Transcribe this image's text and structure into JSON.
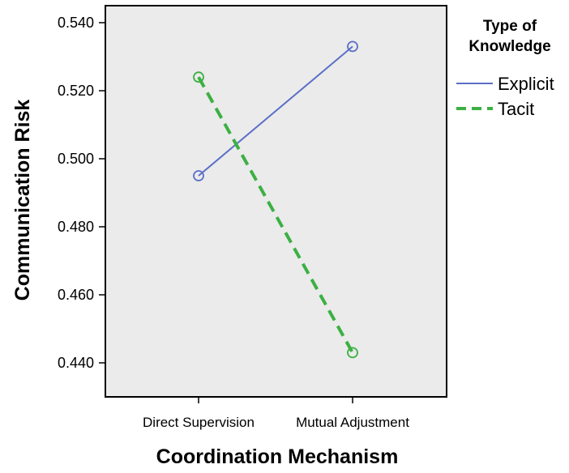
{
  "chart_data": {
    "type": "line",
    "title": "",
    "xlabel": "Coordination Mechanism",
    "ylabel": "Communication Risk",
    "categories": [
      "Direct Supervision",
      "Mutual Adjustment"
    ],
    "ylim": [
      0.43,
      0.545
    ],
    "yticks": [
      "0.440",
      "0.460",
      "0.480",
      "0.500",
      "0.520",
      "0.540"
    ],
    "grid": false,
    "legend": {
      "title_lines": [
        "Type of",
        "Knowledge"
      ],
      "placement": "right"
    },
    "series": [
      {
        "name": "Explicit",
        "values": [
          0.495,
          0.533
        ],
        "color": "#5b6fc7",
        "dashed": false
      },
      {
        "name": "Tacit",
        "values": [
          0.524,
          0.443
        ],
        "color": "#3cb043",
        "dashed": true
      }
    ],
    "plot_background": "#ebebeb",
    "axis_color": "#000000"
  }
}
